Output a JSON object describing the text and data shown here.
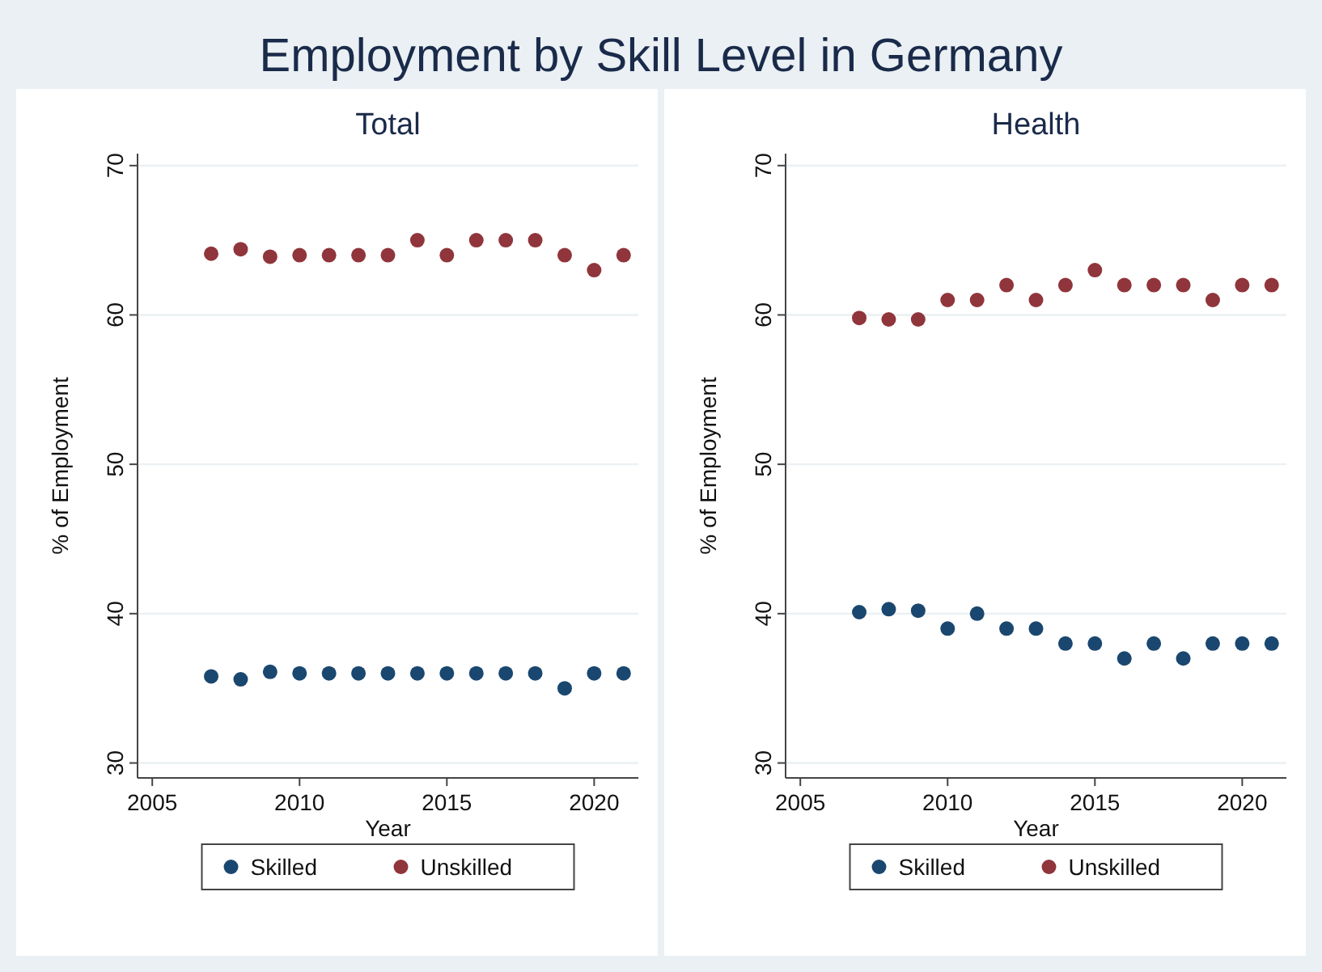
{
  "chart_data": [
    {
      "type": "scatter",
      "title": "Employment by Skill Level in Germany",
      "subtitle": "Total",
      "xlabel": "Year",
      "ylabel": "% of Employment",
      "x": [
        2007,
        2008,
        2009,
        2010,
        2011,
        2012,
        2013,
        2014,
        2015,
        2016,
        2017,
        2018,
        2019,
        2020,
        2021
      ],
      "series": [
        {
          "name": "Skilled",
          "color": "#1a476f",
          "values": [
            35.8,
            35.6,
            36.1,
            36,
            36,
            36,
            36,
            36,
            36,
            36,
            36,
            36,
            35,
            36,
            36
          ]
        },
        {
          "name": "Unskilled",
          "color": "#90353b",
          "values": [
            64.1,
            64.4,
            63.9,
            64,
            64,
            64,
            64,
            65,
            64,
            65,
            65,
            65,
            64,
            63,
            64
          ]
        }
      ],
      "xlim": [
        2004.5,
        2021.5
      ],
      "xticks": [
        2005,
        2010,
        2015,
        2020
      ],
      "ylim": [
        29,
        70.8
      ],
      "yticks": [
        30,
        40,
        50,
        60,
        70
      ],
      "grid": "y",
      "legend": "bottom",
      "marker": "circle"
    },
    {
      "type": "scatter",
      "subtitle": "Health",
      "xlabel": "Year",
      "ylabel": "% of Employment",
      "x": [
        2007,
        2008,
        2009,
        2010,
        2011,
        2012,
        2013,
        2014,
        2015,
        2016,
        2017,
        2018,
        2019,
        2020,
        2021
      ],
      "series": [
        {
          "name": "Skilled",
          "color": "#1a476f",
          "values": [
            40.1,
            40.3,
            40.2,
            39,
            40,
            39,
            39,
            38,
            38,
            37,
            38,
            37,
            38,
            38,
            38
          ]
        },
        {
          "name": "Unskilled",
          "color": "#90353b",
          "values": [
            59.8,
            59.7,
            59.7,
            61,
            61,
            62,
            61,
            62,
            63,
            62,
            62,
            62,
            61,
            62,
            62
          ]
        }
      ],
      "xlim": [
        2004.5,
        2021.5
      ],
      "xticks": [
        2005,
        2010,
        2015,
        2020
      ],
      "ylim": [
        29,
        70.8
      ],
      "yticks": [
        30,
        40,
        50,
        60,
        70
      ],
      "grid": "y",
      "legend": "bottom",
      "marker": "circle"
    }
  ]
}
